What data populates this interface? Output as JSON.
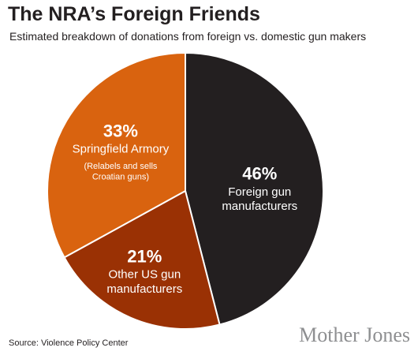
{
  "title": "The NRA’s Foreign Friends",
  "subtitle": "Estimated breakdown of donations from foreign vs. domestic gun makers",
  "source": "Source: Violence Policy Center",
  "brand": "Mother Jones",
  "chart_data": {
    "type": "pie",
    "title": "The NRA’s Foreign Friends",
    "subtitle": "Estimated breakdown of donations from foreign vs. domestic gun makers",
    "slices": [
      {
        "label_lines": [
          "Foreign gun",
          "manufacturers"
        ],
        "value": 46,
        "value_label": "46%",
        "color": "#231f20",
        "note_lines": []
      },
      {
        "label_lines": [
          "Other US gun",
          "manufacturers"
        ],
        "value": 21,
        "value_label": "21%",
        "color": "#9a3104",
        "note_lines": []
      },
      {
        "label_lines": [
          "Springfield Armory"
        ],
        "value": 33,
        "value_label": "33%",
        "color": "#d9630f",
        "note_lines": [
          "(Relabels and sells",
          "Croatian guns)"
        ]
      }
    ],
    "start_angle_deg": 0,
    "direction": "clockwise",
    "slice_border_color": "#ffffff"
  }
}
